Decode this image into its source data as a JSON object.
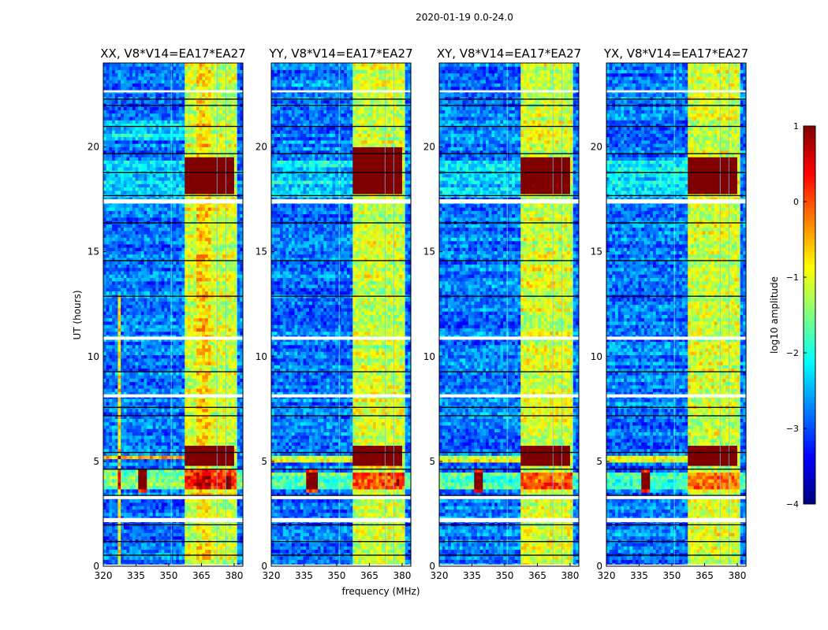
{
  "suptitle": "2020-01-19 0.0-24.0",
  "xlabel": "frequency (MHz)",
  "ylabel": "UT (hours)",
  "chart_data": [
    {
      "type": "heatmap",
      "title": "XX, V8*V14=EA17*EA27",
      "xlim": [
        320,
        384
      ],
      "ylim": [
        0,
        24
      ],
      "xticks": [
        "320",
        "335",
        "350",
        "365",
        "380"
      ],
      "yticks": [
        "0",
        "5",
        "10",
        "15",
        "20"
      ],
      "base": -2.8,
      "features": [
        {
          "f": [
            320,
            357
          ],
          "t": [
            17.6,
            19.4
          ],
          "v": 0.5
        },
        {
          "f": [
            357,
            381
          ],
          "t": [
            0,
            24
          ],
          "v": 1.7
        },
        {
          "f": [
            363,
            369
          ],
          "t": [
            0,
            24
          ],
          "v": 0.4
        },
        {
          "f": [
            357,
            380
          ],
          "t": [
            17.7,
            19.5
          ],
          "v": 2.6
        },
        {
          "f": [
            357,
            380
          ],
          "t": [
            4.8,
            5.8
          ],
          "v": 2.6
        },
        {
          "f": [
            320,
            384
          ],
          "t": [
            3.6,
            4.6
          ],
          "v": 1.2
        },
        {
          "f": [
            336,
            340
          ],
          "t": [
            3.5,
            4.7
          ],
          "v": 3.0
        },
        {
          "f": [
            376,
            379
          ],
          "t": [
            3.7,
            4.3
          ],
          "v": 2.8
        },
        {
          "f": [
            320,
            357
          ],
          "t": [
            5.1,
            5.3
          ],
          "v": 2.4
        },
        {
          "f": [
            327,
            327.6
          ],
          "t": [
            0,
            13
          ],
          "v": 2.0
        },
        {
          "f": [
            320,
            357
          ],
          "t": [
            20.3,
            21.3
          ],
          "v": 0.6
        }
      ]
    },
    {
      "type": "heatmap",
      "title": "YY, V8*V14=EA17*EA27",
      "xlim": [
        320,
        384
      ],
      "ylim": [
        0,
        24
      ],
      "xticks": [
        "320",
        "335",
        "350",
        "365",
        "380"
      ],
      "yticks": [
        "0",
        "5",
        "10",
        "15",
        "20"
      ],
      "base": -2.8,
      "features": [
        {
          "f": [
            320,
            357
          ],
          "t": [
            17.6,
            19.4
          ],
          "v": 0.5
        },
        {
          "f": [
            357,
            381
          ],
          "t": [
            0,
            24
          ],
          "v": 1.7
        },
        {
          "f": [
            357,
            380
          ],
          "t": [
            17.8,
            20.0
          ],
          "v": 2.7
        },
        {
          "f": [
            357,
            380
          ],
          "t": [
            4.8,
            5.8
          ],
          "v": 2.6
        },
        {
          "f": [
            320,
            384
          ],
          "t": [
            3.7,
            4.5
          ],
          "v": 1.1
        },
        {
          "f": [
            336,
            341
          ],
          "t": [
            3.5,
            4.7
          ],
          "v": 3.0
        },
        {
          "f": [
            377,
            379
          ],
          "t": [
            3.8,
            4.2
          ],
          "v": 2.8
        },
        {
          "f": [
            320,
            357
          ],
          "t": [
            5.0,
            5.3
          ],
          "v": 1.8
        }
      ]
    },
    {
      "type": "heatmap",
      "title": "XY, V8*V14=EA17*EA27",
      "xlim": [
        320,
        384
      ],
      "ylim": [
        0,
        24
      ],
      "xticks": [
        "320",
        "335",
        "350",
        "365",
        "380"
      ],
      "yticks": [
        "0",
        "5",
        "10",
        "15",
        "20"
      ],
      "base": -2.8,
      "features": [
        {
          "f": [
            320,
            357
          ],
          "t": [
            17.6,
            19.4
          ],
          "v": 0.5
        },
        {
          "f": [
            357,
            381
          ],
          "t": [
            0,
            24
          ],
          "v": 1.7
        },
        {
          "f": [
            357,
            380
          ],
          "t": [
            17.7,
            19.5
          ],
          "v": 2.6
        },
        {
          "f": [
            357,
            380
          ],
          "t": [
            4.8,
            5.8
          ],
          "v": 2.6
        },
        {
          "f": [
            320,
            384
          ],
          "t": [
            3.7,
            4.5
          ],
          "v": 1.0
        },
        {
          "f": [
            336,
            340
          ],
          "t": [
            3.5,
            4.7
          ],
          "v": 3.0
        },
        {
          "f": [
            320,
            357
          ],
          "t": [
            5.0,
            5.3
          ],
          "v": 1.8
        }
      ]
    },
    {
      "type": "heatmap",
      "title": "YX, V8*V14=EA17*EA27",
      "xlim": [
        320,
        384
      ],
      "ylim": [
        0,
        24
      ],
      "xticks": [
        "320",
        "335",
        "350",
        "365",
        "380"
      ],
      "yticks": [
        "0",
        "5",
        "10",
        "15",
        "20"
      ],
      "base": -2.8,
      "features": [
        {
          "f": [
            320,
            357
          ],
          "t": [
            17.6,
            19.4
          ],
          "v": 0.5
        },
        {
          "f": [
            357,
            381
          ],
          "t": [
            0,
            24
          ],
          "v": 1.7
        },
        {
          "f": [
            357,
            380
          ],
          "t": [
            17.8,
            19.6
          ],
          "v": 2.6
        },
        {
          "f": [
            357,
            380
          ],
          "t": [
            4.8,
            5.8
          ],
          "v": 2.6
        },
        {
          "f": [
            320,
            384
          ],
          "t": [
            3.7,
            4.5
          ],
          "v": 1.0
        },
        {
          "f": [
            336,
            340
          ],
          "t": [
            3.5,
            4.7
          ],
          "v": 3.0
        },
        {
          "f": [
            320,
            357
          ],
          "t": [
            5.0,
            5.3
          ],
          "v": 1.8
        }
      ]
    }
  ],
  "gaps_hours": [
    [
      0.0,
      0.08
    ],
    [
      2.1,
      2.3
    ],
    [
      3.2,
      3.35
    ],
    [
      8.05,
      8.2
    ],
    [
      10.8,
      10.95
    ],
    [
      17.3,
      17.5
    ],
    [
      22.6,
      22.7
    ]
  ],
  "flag_lines_hours": [
    0.55,
    1.2,
    2.0,
    3.4,
    4.65,
    5.45,
    7.2,
    7.6,
    9.3,
    12.9,
    14.6,
    16.4,
    17.7,
    18.8,
    19.7,
    21.0,
    22.0,
    22.3
  ],
  "noise": 0.45,
  "colorbar": {
    "label": "log10 amplitude",
    "range": [
      -4,
      1
    ],
    "ticks": [
      "1",
      "0",
      "−1",
      "−2",
      "−3",
      "−4"
    ]
  }
}
